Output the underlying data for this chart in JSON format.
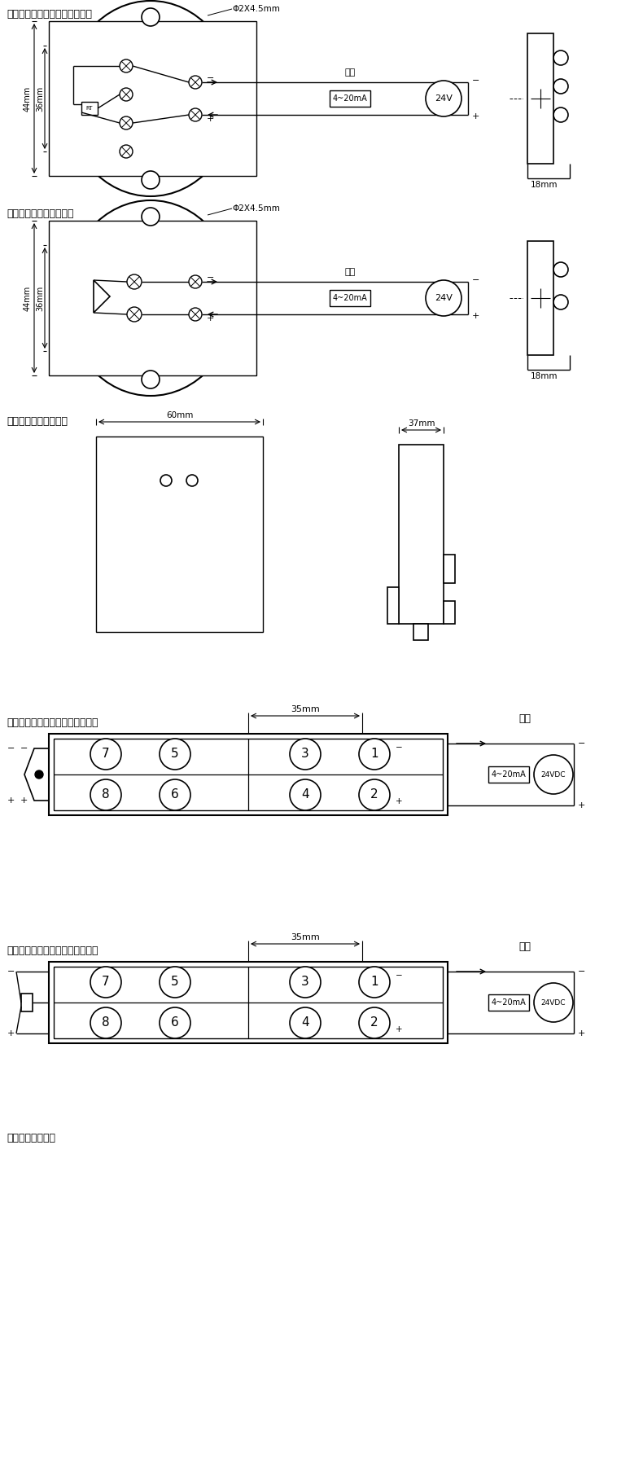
{
  "title1": "热电阻三线制变送器安装接线图",
  "title2": "热电偶变送器安装接线图",
  "title3": "隔离性变送器外形尺寸",
  "title4": "小型导轨式电偶变送器安装接线图",
  "title5": "小型导轨式电阻变送器安装接线图",
  "title6": "小型导轨外形尺寸",
  "dim1": "Φ2X4.5mm",
  "dim2": "44mm",
  "dim3": "36mm",
  "dim4": "18mm",
  "dim5": "60mm",
  "dim6": "37mm",
  "dim7": "35mm",
  "label_fuze": "负载",
  "label_4_20": "4~20mA",
  "label_24v": "24V",
  "label_24vdc": "24VDC",
  "bg_color": "#ffffff"
}
